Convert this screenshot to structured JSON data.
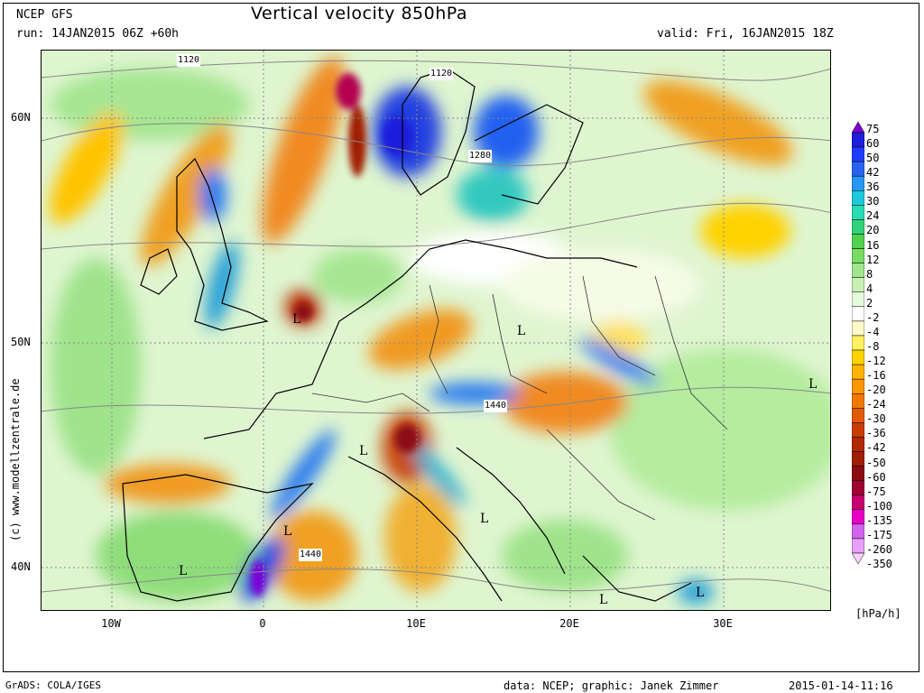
{
  "header": {
    "model": "NCEP GFS",
    "run": "run: 14JAN2015 06Z +60h",
    "title": "Vertical velocity 850hPa",
    "valid": "valid: Fri, 16JAN2015 18Z"
  },
  "side_credit": "(c) www.modellzentrale.de",
  "axes": {
    "lat_labels": [
      "60N",
      "50N",
      "40N"
    ],
    "lon_labels": [
      "10W",
      "0",
      "10E",
      "20E",
      "30E"
    ]
  },
  "map": {
    "lows": [
      "L",
      "L",
      "L",
      "L",
      "L",
      "L",
      "L",
      "L",
      "L"
    ],
    "contours": [
      "1120",
      "1120",
      "1280",
      "1440",
      "1440"
    ]
  },
  "colorbar": {
    "levels": [
      "75",
      "60",
      "50",
      "42",
      "36",
      "30",
      "24",
      "20",
      "16",
      "12",
      "8",
      "4",
      "2",
      "-2",
      "-4",
      "-8",
      "-12",
      "-16",
      "-20",
      "-24",
      "-30",
      "-36",
      "-42",
      "-50",
      "-60",
      "-75",
      "-100",
      "-135",
      "-175",
      "-260",
      "-350"
    ],
    "colors": [
      "#7d00d6",
      "#1e1edc",
      "#1e3cff",
      "#2864f0",
      "#2896f5",
      "#1ec8dc",
      "#28dcb4",
      "#32d278",
      "#50d250",
      "#78dc64",
      "#a0e68c",
      "#c8f0b4",
      "#e6fadc",
      "#ffffff",
      "#fffac8",
      "#fff064",
      "#ffd200",
      "#ffb400",
      "#fa9600",
      "#f07800",
      "#e15a00",
      "#c83c00",
      "#b42800",
      "#a01e00",
      "#8c0a14",
      "#a00032",
      "#c8006e",
      "#e600c8",
      "#d264f0",
      "#e6a0fa",
      "#f5d2fa"
    ],
    "unit": "[hPa/h]"
  },
  "footer": {
    "grads": "GrADS: COLA/IGES",
    "credit": "data: NCEP; graphic: Janek Zimmer",
    "timestamp": "2015-01-14-11:16"
  }
}
